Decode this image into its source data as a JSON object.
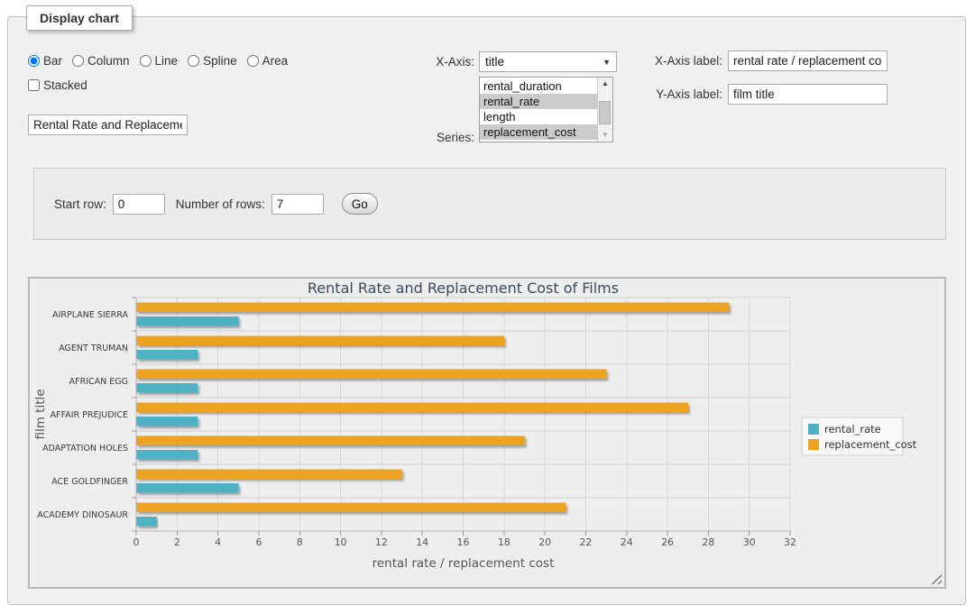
{
  "panel": {
    "legend_title": "Display chart"
  },
  "chart_type": {
    "options": [
      {
        "label": "Bar",
        "checked": true
      },
      {
        "label": "Column",
        "checked": false
      },
      {
        "label": "Line",
        "checked": false
      },
      {
        "label": "Spline",
        "checked": false
      },
      {
        "label": "Area",
        "checked": false
      }
    ],
    "stacked_label": "Stacked"
  },
  "title_input": {
    "value": "Rental Rate and Replacement Cost of Films"
  },
  "x_axis_select": {
    "label": "X-Axis:",
    "selected": "title"
  },
  "series_select": {
    "label": "Series:",
    "options": [
      {
        "label": "rental_duration",
        "selected": false
      },
      {
        "label": "rental_rate",
        "selected": true
      },
      {
        "label": "length",
        "selected": false
      },
      {
        "label": "replacement_cost",
        "selected": true
      }
    ]
  },
  "x_axis_label_field": {
    "label": "X-Axis label:",
    "value": "rental rate / replacement cost"
  },
  "y_axis_label_field": {
    "label": "Y-Axis label:",
    "value": "film title"
  },
  "row_controls": {
    "start_row_label": "Start row:",
    "start_row_value": "0",
    "num_rows_label": "Number of rows:",
    "num_rows_value": "7",
    "go_label": "Go"
  },
  "chart_data": {
    "type": "bar",
    "title": "Rental Rate and Replacement Cost of Films",
    "categories": [
      "AIRPLANE SIERRA",
      "AGENT TRUMAN",
      "AFRICAN EGG",
      "AFFAIR PREJUDICE",
      "ADAPTATION HOLES",
      "ACE GOLDFINGER",
      "ACADEMY DINOSAUR"
    ],
    "series": [
      {
        "name": "rental_rate",
        "color": "#4FB2C4",
        "values": [
          4.99,
          2.99,
          2.99,
          2.99,
          2.99,
          4.99,
          0.99
        ]
      },
      {
        "name": "replacement_cost",
        "color": "#ECA322",
        "values": [
          28.99,
          17.99,
          22.99,
          26.99,
          18.99,
          12.99,
          20.99
        ]
      }
    ],
    "xlabel": "rental rate / replacement cost",
    "ylabel": "film title",
    "xlim": [
      0,
      32
    ],
    "tick_step": 2,
    "grid": true,
    "legend_position": "right",
    "bar_group_order": "second_series_on_top"
  }
}
